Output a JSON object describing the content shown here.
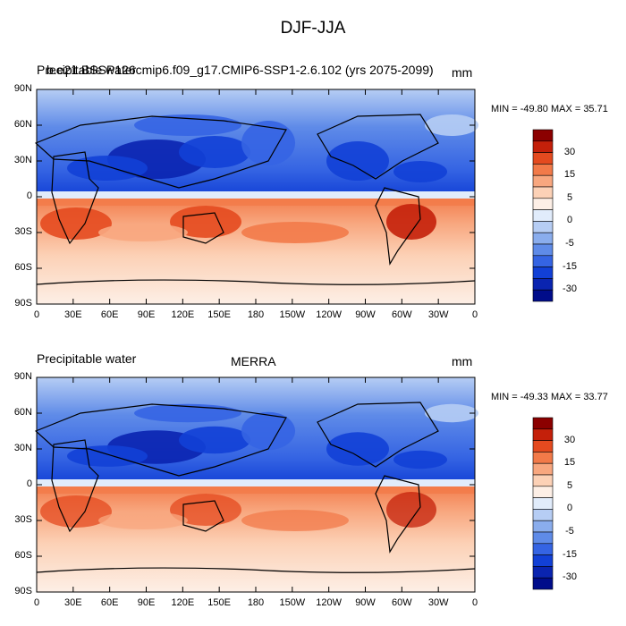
{
  "figure": {
    "title": "DJF-JJA"
  },
  "panels": [
    {
      "id": "top",
      "left_label": "Precipitable water",
      "overlap_label": "b.e21.BSSP126cmip6.f09_g17.CMIP6-SSP1-2.6.102 (yrs 2075-2099)",
      "center_label": "",
      "units": "mm",
      "min_max": "MIN = -49.80 MAX =  35.71",
      "x_ticks": [
        "0",
        "30E",
        "60E",
        "90E",
        "120E",
        "150E",
        "180",
        "150W",
        "120W",
        "90W",
        "60W",
        "30W",
        "0"
      ],
      "y_ticks": [
        "90N",
        "60N",
        "30N",
        "0",
        "30S",
        "60S",
        "90S"
      ]
    },
    {
      "id": "bottom",
      "left_label": "Precipitable water",
      "overlap_label": "",
      "center_label": "MERRA",
      "units": "mm",
      "min_max": "MIN = -49.33 MAX =  33.77",
      "x_ticks": [
        "0",
        "30E",
        "60E",
        "90E",
        "120E",
        "150E",
        "180",
        "150W",
        "120W",
        "90W",
        "60W",
        "30W",
        "0"
      ],
      "y_ticks": [
        "90N",
        "60N",
        "30N",
        "0",
        "30S",
        "60S",
        "90S"
      ]
    }
  ],
  "colorbar": {
    "labels": [
      "30",
      "15",
      "5",
      "0",
      "-5",
      "-15",
      "-30"
    ],
    "colors": [
      "#8b0000",
      "#c4200a",
      "#e44a1f",
      "#f27a49",
      "#f8a77f",
      "#fcd1b6",
      "#fdefe6",
      "#e1ecfb",
      "#b6cdf4",
      "#8aaded",
      "#5f8be8",
      "#3564e3",
      "#1240d6",
      "#0a24b0",
      "#000c8a"
    ]
  }
}
